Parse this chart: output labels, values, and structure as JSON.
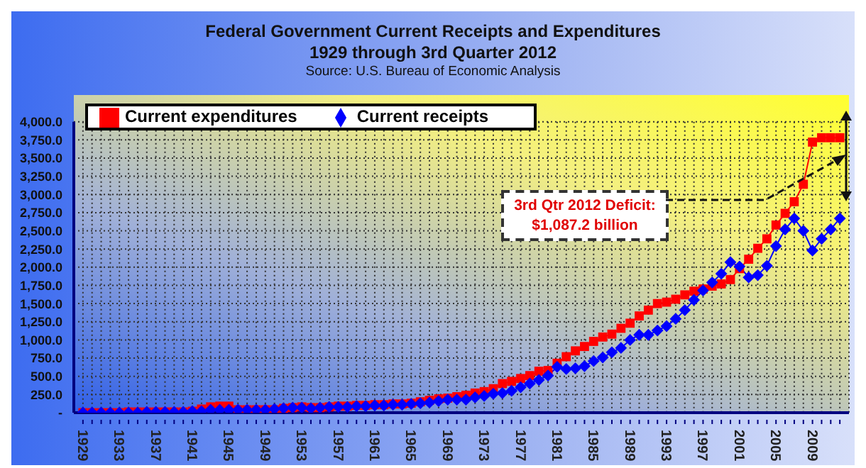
{
  "chart_data": {
    "type": "line",
    "title": "Federal Government Current Receipts and Expenditures",
    "subtitle": "1929 through 3rd Quarter 2012",
    "annotations": [
      "Source: U.S. Bureau of Economic Analysis",
      "3rd Qtr 2012 Deficit:\n$1,087.2 billion"
    ],
    "x": [
      1929,
      1930,
      1931,
      1932,
      1933,
      1934,
      1935,
      1936,
      1937,
      1938,
      1939,
      1940,
      1941,
      1942,
      1943,
      1944,
      1945,
      1946,
      1947,
      1948,
      1949,
      1950,
      1951,
      1952,
      1953,
      1954,
      1955,
      1956,
      1957,
      1958,
      1959,
      1960,
      1961,
      1962,
      1963,
      1964,
      1965,
      1966,
      1967,
      1968,
      1969,
      1970,
      1971,
      1972,
      1973,
      1974,
      1975,
      1976,
      1977,
      1978,
      1979,
      1980,
      1981,
      1982,
      1983,
      1984,
      1985,
      1986,
      1987,
      1988,
      1989,
      1990,
      1991,
      1992,
      1993,
      1994,
      1995,
      1996,
      1997,
      1998,
      1999,
      2000,
      2001,
      2002,
      2003,
      2004,
      2005,
      2006,
      2007,
      2008,
      2009,
      2010,
      2011,
      2012
    ],
    "series": [
      {
        "name": "Current expenditures",
        "color": "#ff0000",
        "marker": "square",
        "values": [
          0,
          0,
          0,
          0,
          0,
          10,
          10,
          10,
          10,
          10,
          10,
          10,
          20,
          50,
          80,
          90,
          90,
          40,
          40,
          40,
          40,
          40,
          60,
          70,
          80,
          70,
          70,
          80,
          90,
          90,
          100,
          100,
          110,
          110,
          120,
          120,
          130,
          150,
          170,
          190,
          200,
          220,
          240,
          270,
          290,
          330,
          400,
          430,
          470,
          510,
          570,
          580,
          680,
          770,
          850,
          910,
          980,
          1040,
          1080,
          1160,
          1230,
          1330,
          1410,
          1500,
          1520,
          1560,
          1620,
          1670,
          1700,
          1740,
          1770,
          1830,
          1980,
          2110,
          2260,
          2390,
          2580,
          2740,
          2900,
          3140,
          3720,
          3780,
          3780,
          3780
        ]
      },
      {
        "name": "Current receipts",
        "color": "#0000ff",
        "marker": "diamond",
        "values": [
          0,
          0,
          0,
          0,
          0,
          0,
          0,
          10,
          10,
          10,
          10,
          10,
          20,
          20,
          40,
          40,
          40,
          40,
          40,
          40,
          40,
          50,
          60,
          70,
          70,
          60,
          70,
          80,
          80,
          80,
          90,
          90,
          100,
          100,
          110,
          110,
          120,
          130,
          140,
          160,
          180,
          180,
          180,
          210,
          230,
          260,
          270,
          300,
          350,
          400,
          450,
          510,
          630,
          600,
          610,
          640,
          710,
          760,
          830,
          890,
          1000,
          1070,
          1070,
          1130,
          1190,
          1290,
          1410,
          1550,
          1680,
          1790,
          1910,
          2070,
          2010,
          1860,
          1890,
          2020,
          2290,
          2520,
          2670,
          2500,
          2230,
          2390,
          2520,
          2670
        ]
      }
    ],
    "xlim": [
      1928,
      2013
    ],
    "xticks": [
      1929,
      {
        "value": 1930,
        "label": null
      },
      {
        "value": 1931,
        "label": null
      },
      {
        "value": 1932,
        "label": null
      },
      1933,
      {
        "value": 1934,
        "label": null
      },
      {
        "value": 1935,
        "label": null
      },
      {
        "value": 1936,
        "label": null
      },
      1937,
      {
        "value": 1938,
        "label": null
      },
      {
        "value": 1939,
        "label": null
      },
      {
        "value": 1940,
        "label": null
      },
      1941,
      {
        "value": 1942,
        "label": null
      },
      {
        "value": 1943,
        "label": null
      },
      {
        "value": 1944,
        "label": null
      },
      1945,
      {
        "value": 1946,
        "label": null
      },
      {
        "value": 1947,
        "label": null
      },
      {
        "value": 1948,
        "label": null
      },
      1949,
      {
        "value": 1950,
        "label": null
      },
      {
        "value": 1951,
        "label": null
      },
      {
        "value": 1952,
        "label": null
      },
      1953,
      {
        "value": 1954,
        "label": null
      },
      {
        "value": 1955,
        "label": null
      },
      {
        "value": 1956,
        "label": null
      },
      1957,
      {
        "value": 1958,
        "label": null
      },
      {
        "value": 1959,
        "label": null
      },
      {
        "value": 1960,
        "label": null
      },
      1961,
      {
        "value": 1962,
        "label": null
      },
      {
        "value": 1963,
        "label": null
      },
      {
        "value": 1964,
        "label": null
      },
      1965,
      {
        "value": 1966,
        "label": null
      },
      {
        "value": 1967,
        "label": null
      },
      {
        "value": 1968,
        "label": null
      },
      1969,
      {
        "value": 1970,
        "label": null
      },
      {
        "value": 1971,
        "label": null
      },
      {
        "value": 1972,
        "label": null
      },
      1973,
      {
        "value": 1974,
        "label": null
      },
      {
        "value": 1975,
        "label": null
      },
      {
        "value": 1976,
        "label": null
      },
      1977,
      {
        "value": 1978,
        "label": null
      },
      {
        "value": 1979,
        "label": null
      },
      {
        "value": 1980,
        "label": null
      },
      1981,
      {
        "value": 1982,
        "label": null
      },
      {
        "value": 1983,
        "label": null
      },
      {
        "value": 1984,
        "label": null
      },
      1985,
      {
        "value": 1986,
        "label": null
      },
      {
        "value": 1987,
        "label": null
      },
      {
        "value": 1988,
        "label": null
      },
      1989,
      {
        "value": 1990,
        "label": null
      },
      {
        "value": 1991,
        "label": null
      },
      {
        "value": 1992,
        "label": null
      },
      1993,
      {
        "value": 1994,
        "label": null
      },
      {
        "value": 1995,
        "label": null
      },
      {
        "value": 1996,
        "label": null
      },
      1997,
      {
        "value": 1998,
        "label": null
      },
      {
        "value": 1999,
        "label": null
      },
      {
        "value": 2000,
        "label": null
      },
      2001,
      {
        "value": 2002,
        "label": null
      },
      {
        "value": 2003,
        "label": null
      },
      {
        "value": 2004,
        "label": null
      },
      2005,
      {
        "value": 2006,
        "label": null
      },
      {
        "value": 2007,
        "label": null
      },
      {
        "value": 2008,
        "label": null
      },
      2009,
      {
        "value": 2010,
        "label": null
      },
      {
        "value": 2011,
        "label": null
      },
      {
        "value": 2012,
        "label": null
      }
    ],
    "ylim": [
      0,
      4000
    ],
    "yticks": [
      {
        "value": 0,
        "label": "-"
      },
      {
        "value": 250,
        "label": "250.0"
      },
      {
        "value": 500,
        "label": "500.0"
      },
      {
        "value": 750,
        "label": "750.0"
      },
      {
        "value": 1000,
        "label": "1,000.0"
      },
      {
        "value": 1250,
        "label": "1,250.0"
      },
      {
        "value": 1500,
        "label": "1,500.0"
      },
      {
        "value": 1750,
        "label": "1,750.0"
      },
      {
        "value": 2000,
        "label": "2,000.0"
      },
      {
        "value": 2250,
        "label": "2,250.0"
      },
      {
        "value": 2500,
        "label": "2,500.0"
      },
      {
        "value": 2750,
        "label": "2,750.0"
      },
      {
        "value": 3000,
        "label": "3,000.0"
      },
      {
        "value": 3250,
        "label": "3,250.0"
      },
      {
        "value": 3500,
        "label": "3,500.0"
      },
      {
        "value": 3750,
        "label": "3,750.0"
      },
      {
        "value": 4000,
        "label": "4,000.0"
      }
    ],
    "grid": true,
    "legend": "top left",
    "line_style": "solid"
  }
}
